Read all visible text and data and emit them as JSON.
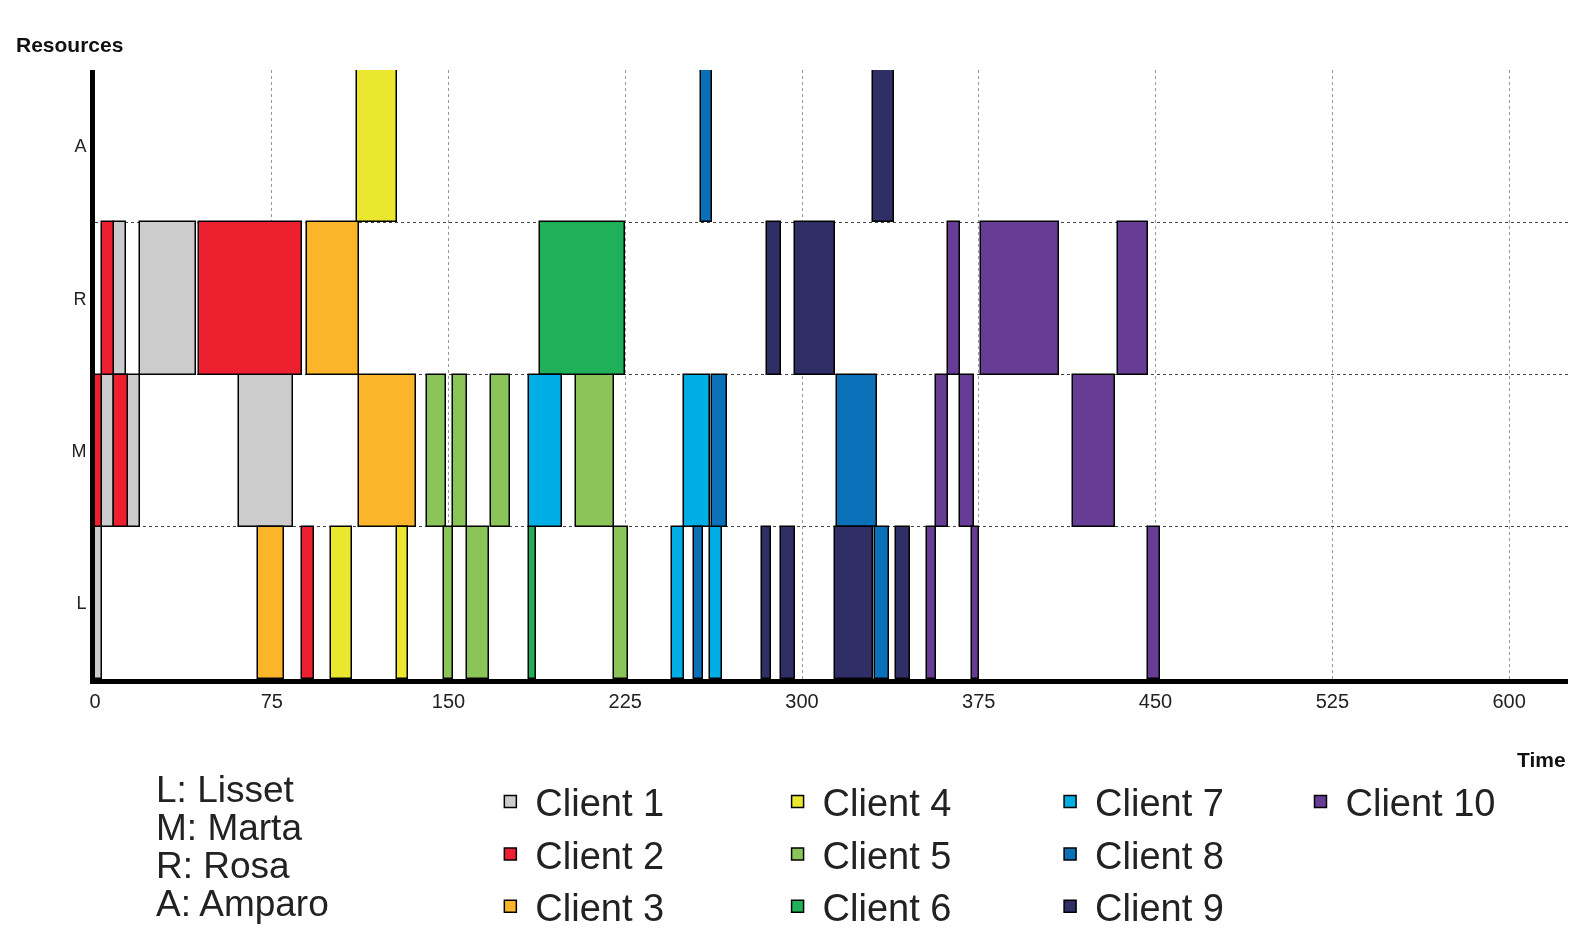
{
  "chart_data": {
    "type": "bar",
    "orientation": "horizontal",
    "categories": [
      "A",
      "R",
      "M",
      "L"
    ],
    "xlabel": "Time",
    "ylabel": "Resources",
    "xlim": [
      0,
      625
    ],
    "xticks": [
      0,
      75,
      150,
      225,
      300,
      375,
      450,
      525,
      600
    ],
    "grid": true,
    "legend": "bottom",
    "annotations": [
      "L: Lisset\nM: Marta\nR: Rosa\nA: Amparo"
    ],
    "series": [
      {
        "name": "Client 1",
        "color": "#cccccc",
        "values": [
          null,
          5,
          5,
          3
        ],
        "base": [
          null,
          8,
          3,
          0
        ]
      },
      {
        "color": "#cccccc",
        "values": [
          null,
          24,
          5,
          null
        ],
        "base": [
          null,
          19,
          14,
          null
        ]
      },
      {
        "color": "#cccccc",
        "values": [
          null,
          null,
          23,
          null
        ],
        "base": [
          null,
          null,
          61,
          null
        ]
      },
      {
        "name": "Client 2",
        "color": "#ed2030",
        "values": [
          null,
          5,
          3,
          5
        ],
        "base": [
          null,
          3,
          0,
          88
        ]
      },
      {
        "color": "#ed2030",
        "values": [
          null,
          44,
          6,
          null
        ],
        "base": [
          null,
          44,
          8,
          null
        ]
      },
      {
        "name": "Client 3",
        "color": "#fbb52a",
        "values": [
          null,
          22,
          24,
          11
        ],
        "base": [
          null,
          90,
          112,
          69
        ]
      },
      {
        "name": "Client 4",
        "color": "#ebe62e",
        "values": [
          17,
          null,
          null,
          9
        ],
        "base": [
          111,
          null,
          null,
          100
        ]
      },
      {
        "color": "#ebe62e",
        "values": [
          null,
          null,
          null,
          5
        ],
        "base": [
          null,
          null,
          null,
          128
        ]
      },
      {
        "name": "Client 5",
        "color": "#8bc55a",
        "values": [
          null,
          null,
          8,
          4
        ],
        "base": [
          null,
          null,
          141,
          148
        ]
      },
      {
        "color": "#8bc55a",
        "values": [
          null,
          null,
          6,
          9
        ],
        "base": [
          null,
          null,
          152,
          158
        ]
      },
      {
        "color": "#8bc55a",
        "values": [
          null,
          null,
          8,
          6
        ],
        "base": [
          null,
          null,
          168,
          220
        ]
      },
      {
        "color": "#8bc55a",
        "values": [
          null,
          null,
          16,
          null
        ],
        "base": [
          null,
          null,
          204,
          null
        ]
      },
      {
        "name": "Client 6",
        "color": "#21b05a",
        "values": [
          null,
          36,
          null,
          3
        ],
        "base": [
          null,
          189,
          null,
          184
        ]
      },
      {
        "name": "Client 7",
        "color": "#00aee6",
        "values": [
          null,
          null,
          14,
          5
        ],
        "base": [
          null,
          null,
          184,
          245
        ]
      },
      {
        "color": "#00aee6",
        "values": [
          null,
          null,
          11,
          5
        ],
        "base": [
          null,
          null,
          250,
          261
        ]
      },
      {
        "name": "Client 8",
        "color": "#0a70b8",
        "values": [
          5,
          null,
          6,
          4
        ],
        "base": [
          257,
          null,
          262,
          254
        ]
      },
      {
        "color": "#0a70b8",
        "values": [
          null,
          null,
          17,
          6
        ],
        "base": [
          null,
          null,
          315,
          331
        ]
      },
      {
        "name": "Client 9",
        "color": "#2f2f66",
        "values": [
          9,
          6,
          null,
          4
        ],
        "base": [
          330,
          285,
          null,
          283
        ]
      },
      {
        "color": "#2f2f66",
        "values": [
          null,
          17,
          null,
          6
        ],
        "base": [
          null,
          297,
          null,
          291
        ]
      },
      {
        "color": "#2f2f66",
        "values": [
          null,
          null,
          null,
          16
        ],
        "base": [
          null,
          null,
          null,
          314
        ]
      },
      {
        "color": "#2f2f66",
        "values": [
          null,
          null,
          null,
          6
        ],
        "base": [
          null,
          null,
          null,
          340
        ]
      },
      {
        "name": "Client 10",
        "color": "#673c94",
        "values": [
          null,
          5,
          5,
          4
        ],
        "base": [
          null,
          362,
          357,
          353
        ]
      },
      {
        "color": "#673c94",
        "values": [
          null,
          33,
          6,
          3
        ],
        "base": [
          null,
          376,
          367,
          372
        ]
      },
      {
        "color": "#673c94",
        "values": [
          null,
          13,
          18,
          5
        ],
        "base": [
          null,
          434,
          415,
          447
        ]
      }
    ]
  }
}
